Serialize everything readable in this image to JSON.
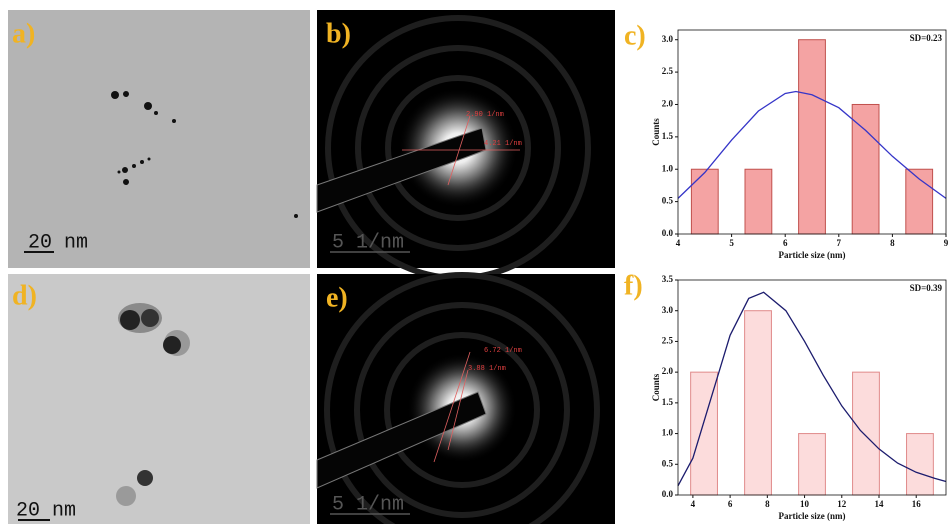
{
  "panels": [
    {
      "label": "a)",
      "scale_bar": "20 nm"
    },
    {
      "label": "b)",
      "scale_bar": "5 1/nm",
      "annotations": [
        "2.90 1/nm",
        "4.21 1/nm"
      ]
    },
    {
      "label": "d)",
      "scale_bar": "20 nm"
    },
    {
      "label": "e)",
      "scale_bar": "5 1/nm",
      "annotations": [
        "6.72 1/nm",
        "3.88 1/nm"
      ]
    }
  ],
  "chart_data": [
    {
      "type": "bar",
      "panel_label": "c)",
      "annotation": "SD=0.23",
      "xlabel": "Particle size (nm)",
      "ylabel": "Counts",
      "x": [
        4.5,
        5.5,
        6.5,
        7.5,
        8.5
      ],
      "values": [
        1,
        1,
        3,
        2,
        1
      ],
      "color": "#f4a3a3",
      "edge_color": "#c0504d",
      "xlim": [
        4,
        9
      ],
      "ylim": [
        0,
        3.15
      ],
      "xticks": [
        4,
        5,
        6,
        7,
        8,
        9
      ],
      "yticks": [
        {
          "value": 0,
          "label": "0.0"
        },
        {
          "value": 0.5,
          "label": "0.5"
        },
        {
          "value": 1,
          "label": "1.0"
        },
        {
          "value": 1.5,
          "label": "1.5"
        },
        {
          "value": 2,
          "label": "2.0"
        },
        {
          "value": 2.5,
          "label": "2.5"
        },
        {
          "value": 3,
          "label": "3.0"
        }
      ],
      "fit": {
        "color": "#3535c8",
        "x": [
          4,
          4.5,
          5,
          5.5,
          6,
          6.2,
          6.5,
          7,
          7.5,
          8,
          8.5,
          9
        ],
        "y": [
          0.55,
          0.95,
          1.45,
          1.9,
          2.17,
          2.2,
          2.15,
          1.95,
          1.6,
          1.2,
          0.85,
          0.55
        ]
      }
    },
    {
      "type": "bar",
      "panel_label": "f)",
      "annotation": "SD=0.39",
      "xlabel": "Particle size (nm)",
      "ylabel": "Counts",
      "x": [
        4.6,
        7.5,
        10.4,
        13.3,
        16.2
      ],
      "values": [
        2,
        3,
        1,
        2,
        1
      ],
      "color": "#fcdcdc",
      "edge_color": "#e08a8a",
      "xlim": [
        3.2,
        17.6
      ],
      "ylim": [
        0,
        3.5
      ],
      "xticks": [
        4,
        6,
        8,
        10,
        12,
        14,
        16
      ],
      "yticks": [
        {
          "value": 0,
          "label": "0.0"
        },
        {
          "value": 0.5,
          "label": "0.5"
        },
        {
          "value": 1,
          "label": "1.0"
        },
        {
          "value": 1.5,
          "label": "1.5"
        },
        {
          "value": 2,
          "label": "2.0"
        },
        {
          "value": 2.5,
          "label": "2.5"
        },
        {
          "value": 3,
          "label": "3.0"
        },
        {
          "value": 3.5,
          "label": "3.5"
        }
      ],
      "fit": {
        "color": "#1c1c6e",
        "x": [
          3.2,
          4,
          5,
          6,
          7,
          7.8,
          9,
          10,
          11,
          12,
          13,
          14,
          15,
          16,
          17,
          17.6
        ],
        "y": [
          0.15,
          0.6,
          1.6,
          2.6,
          3.2,
          3.3,
          3.0,
          2.5,
          1.95,
          1.45,
          1.05,
          0.75,
          0.52,
          0.37,
          0.27,
          0.22
        ]
      }
    }
  ]
}
